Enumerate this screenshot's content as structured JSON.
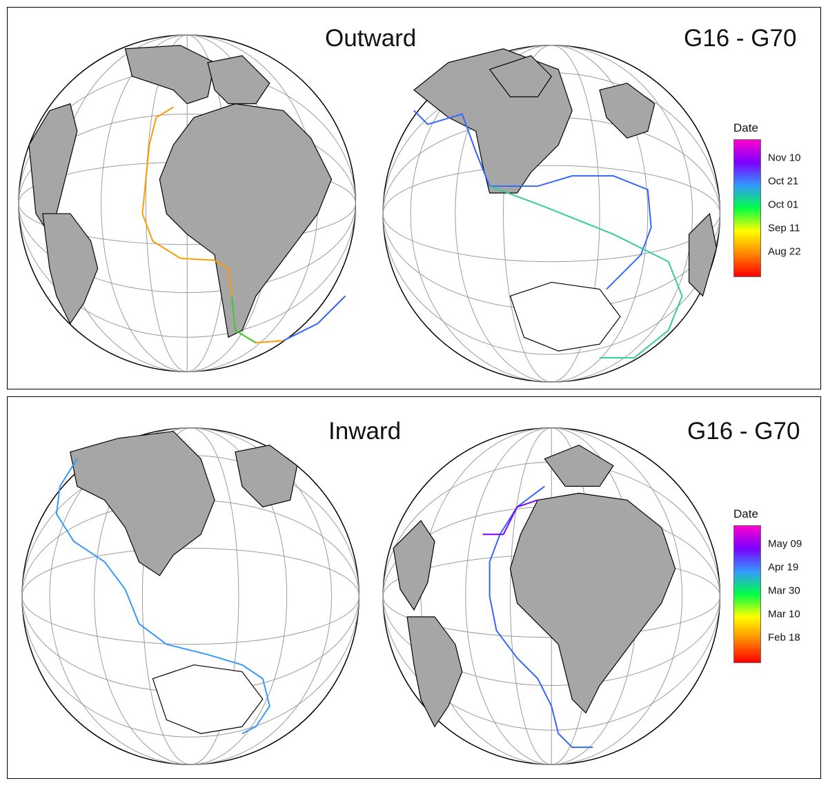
{
  "panels": [
    {
      "id": "outward",
      "title": "Outward",
      "tag": "G16 - G70",
      "legend": {
        "title": "Date",
        "colors": [
          "#ff0000",
          "#ff8800",
          "#ffff00",
          "#00ff44",
          "#3399ff",
          "#7a00ff",
          "#ff00cc"
        ],
        "labels": [
          "Nov 10",
          "Oct 21",
          "Oct 01",
          "Sep 11",
          "Aug 22"
        ]
      }
    },
    {
      "id": "inward",
      "title": "Inward",
      "tag": "G16 - G70",
      "legend": {
        "title": "Date",
        "colors": [
          "#ff0000",
          "#ff8800",
          "#ffff00",
          "#00ff44",
          "#3399ff",
          "#7a00ff",
          "#ff00cc"
        ],
        "labels": [
          "May 09",
          "Apr 19",
          "Mar 30",
          "Mar 10",
          "Feb 18"
        ]
      }
    }
  ],
  "map_style": {
    "land": "#a6a6a6",
    "coast": "#000000",
    "graticule": "#9a9a9a",
    "ocean": "#ffffff"
  }
}
